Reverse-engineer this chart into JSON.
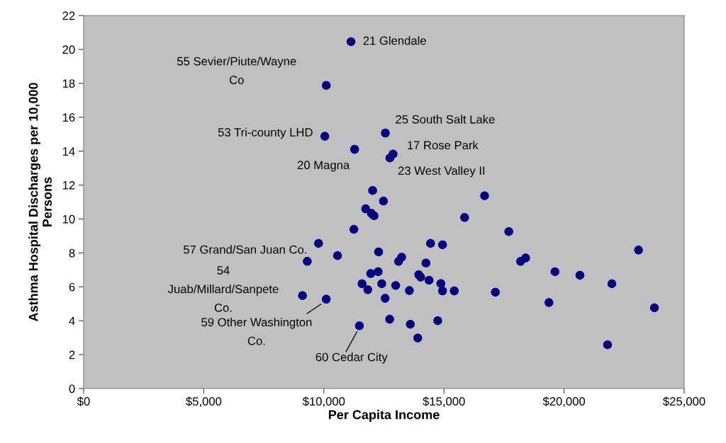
{
  "chart_data": {
    "type": "scatter",
    "xlabel": "Per Capita Income",
    "ylabel": "Asthma Hospital Discharges per 10,000\nPersons",
    "x": [
      11130,
      10100,
      12560,
      10040,
      11280,
      12880,
      12750,
      12030,
      12480,
      11740,
      11980,
      12090,
      11250,
      9780,
      10570,
      9310,
      12280,
      13240,
      13110,
      14250,
      14440,
      14940,
      16690,
      15860,
      11950,
      12260,
      13950,
      14030,
      14380,
      14870,
      14940,
      15430,
      11590,
      11830,
      12410,
      12990,
      13560,
      12550,
      9110,
      10100,
      17140,
      12740,
      13600,
      14740,
      13910,
      11480,
      17700,
      23100,
      18400,
      18190,
      19620,
      20660,
      21990,
      19370,
      23760,
      21810
    ],
    "series": [
      {
        "color": "#000080",
        "values": [
          20.46,
          17.88,
          15.07,
          14.88,
          14.11,
          13.83,
          13.6,
          11.68,
          11.06,
          10.6,
          10.33,
          10.19,
          9.39,
          8.56,
          7.84,
          7.5,
          8.06,
          7.75,
          7.5,
          7.4,
          8.56,
          8.48,
          11.37,
          10.09,
          6.78,
          6.89,
          6.71,
          6.57,
          6.39,
          6.19,
          5.76,
          5.76,
          6.18,
          5.83,
          6.18,
          6.08,
          5.78,
          5.32,
          5.48,
          5.27,
          5.68,
          4.09,
          3.79,
          4.0,
          2.98,
          3.7,
          9.26,
          8.17,
          7.7,
          7.5,
          6.89,
          6.68,
          6.18,
          5.07,
          4.76,
          2.58
        ]
      }
    ],
    "xlim": [
      0,
      25000
    ],
    "xticks": [
      {
        "value": 0,
        "label": "$0"
      },
      {
        "value": 5000,
        "label": "$5,000"
      },
      {
        "value": 10000,
        "label": "$10,000"
      },
      {
        "value": 15000,
        "label": "$15,000"
      },
      {
        "value": 20000,
        "label": "$20,000"
      },
      {
        "value": 25000,
        "label": "$25,000"
      }
    ],
    "ylim": [
      0,
      22
    ],
    "yticks": [
      0,
      2,
      4,
      6,
      8,
      10,
      12,
      14,
      16,
      18,
      20,
      22
    ],
    "grid": false,
    "marker": "circle",
    "annotations": [
      {
        "text": "21 Glendale",
        "x": 11130,
        "y": 20.46
      },
      {
        "text": "55 Sevier/Piute/Wayne\nCo",
        "x": 10100,
        "y": 17.88
      },
      "25 South Salt Lake",
      {
        "text": "53 Tri-county LHD",
        "x": 10040,
        "y": 14.88
      },
      {
        "text": "20 Magna",
        "x": 11280,
        "y": 14.11
      },
      {
        "text": "17 Rose Park",
        "x": 12880,
        "y": 13.83
      },
      {
        "text": "23 West Valley II",
        "x": 12750,
        "y": 13.6
      },
      {
        "text": "57 Grand/San Juan Co.",
        "x": 9310,
        "y": 7.5
      },
      "54\nJuab/Millard/Sanpete\nCo.",
      "59 Other Washington\nCo.",
      "60 Cedar City"
    ]
  }
}
